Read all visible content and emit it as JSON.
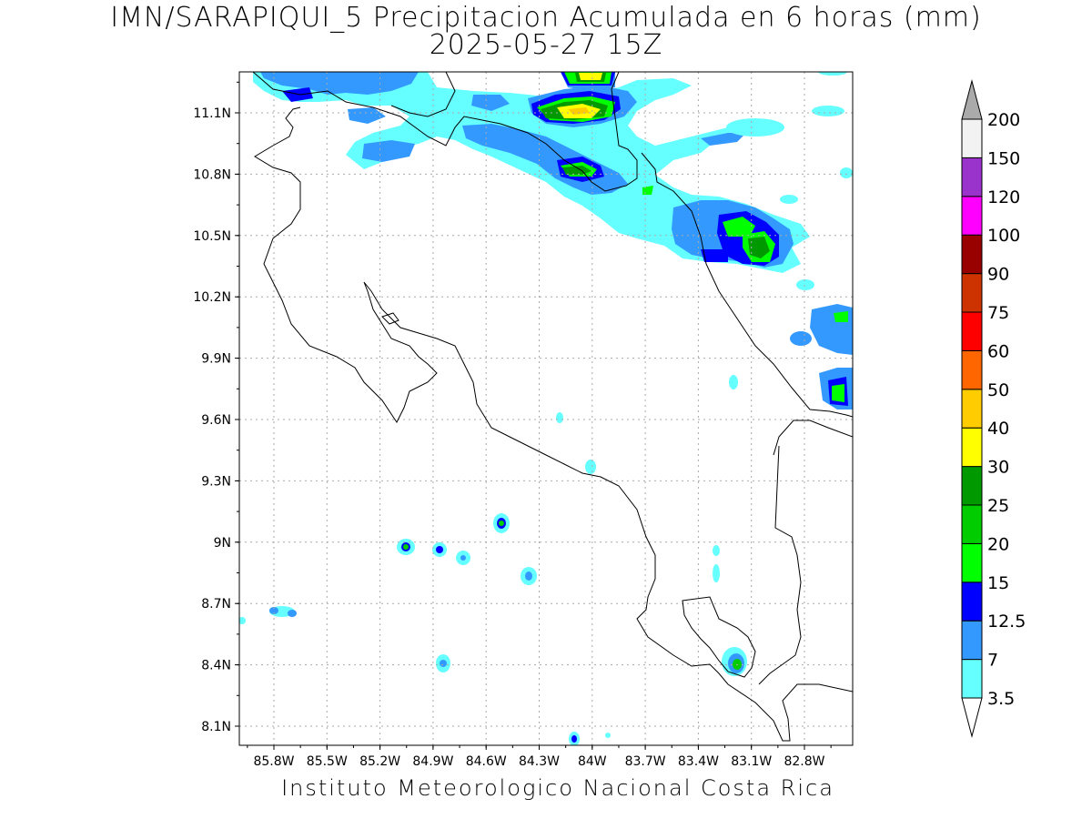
{
  "title": {
    "line1": "IMN/SARAPIQUI_5 Precipitacion Acumulada en 6 horas (mm)",
    "line2": "2025-05-27 15Z"
  },
  "footer": "Instituto Meteorologico Nacional Costa Rica",
  "map": {
    "lat_labels": [
      "11.1N",
      "10.8N",
      "10.5N",
      "10.2N",
      "9.9N",
      "9.6N",
      "9.3N",
      "9N",
      "8.7N",
      "8.4N",
      "8.1N"
    ],
    "lon_labels": [
      "85.8W",
      "85.5W",
      "85.2W",
      "84.9W",
      "84.6W",
      "84.3W",
      "84W",
      "83.7W",
      "83.4W",
      "83.1W",
      "82.8W"
    ],
    "colors": {
      "c3_5": "#66ffff",
      "c7": "#3399ff",
      "c12_5": "#0000ff",
      "c15": "#00ff00",
      "c20": "#00cc00",
      "c25": "#009900",
      "c30": "#ffff00",
      "c40": "#ffcc00"
    }
  },
  "legend": {
    "labels": [
      "3.5",
      "7",
      "12.5",
      "15",
      "20",
      "25",
      "30",
      "40",
      "50",
      "60",
      "75",
      "90",
      "100",
      "120",
      "150",
      "200"
    ],
    "colors": [
      "#66ffff",
      "#3399ff",
      "#0000ff",
      "#00ff00",
      "#00cc00",
      "#009900",
      "#ffff00",
      "#ffcc00",
      "#ff6600",
      "#ff0000",
      "#cc3300",
      "#990000",
      "#ff00ff",
      "#9933cc",
      "#f2f2f2",
      "#aaaaaa"
    ]
  }
}
